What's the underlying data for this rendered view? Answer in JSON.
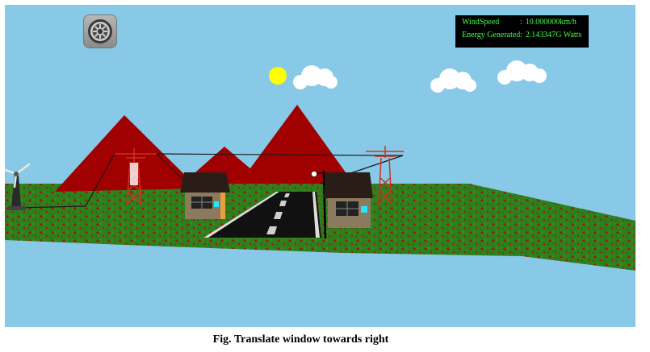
{
  "hud": {
    "wind_label": "WindSpeed",
    "wind_sep": ":",
    "wind_value": "10.000000km/h",
    "energy_label": "Energy Generated",
    "energy_sep": ":",
    "energy_value": "2.143347G Watts"
  },
  "settings": {
    "icon": "gear-icon"
  },
  "caption": "Fig. Translate window towards right",
  "colors": {
    "sky": "#87c9e6",
    "mountain": "#a00000",
    "grass": "#2e7d1a",
    "road": "#111111",
    "sun": "#ffff00",
    "hud_text": "#44ff44"
  }
}
